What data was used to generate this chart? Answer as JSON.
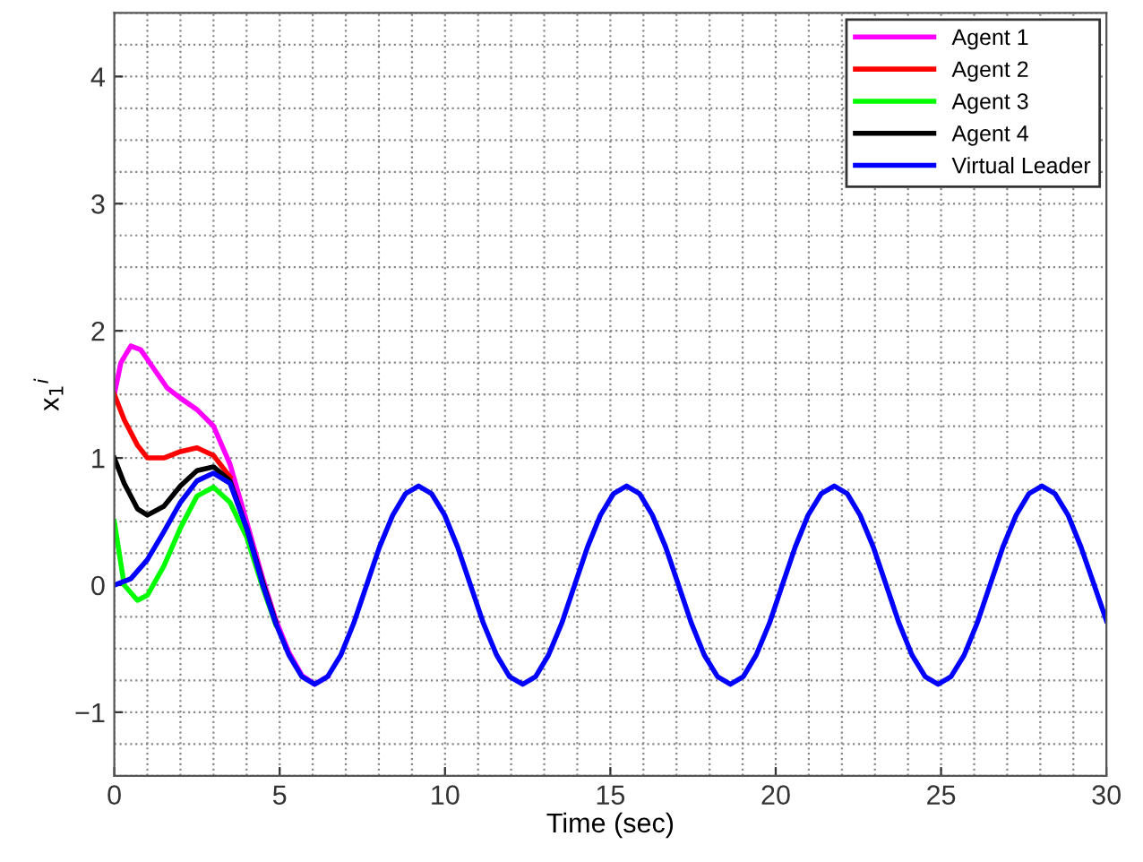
{
  "chart_data": {
    "type": "line",
    "xlabel": "Time (sec)",
    "ylabel": "x$_{1}$$^{i}$",
    "xlim": [
      0,
      30
    ],
    "xticks": [
      0,
      5,
      10,
      15,
      20,
      25,
      30
    ],
    "ylim": [
      -1.5,
      4.5
    ],
    "yticks": [
      -1,
      0,
      1,
      2,
      3,
      4
    ],
    "grid": true,
    "legend": "top right",
    "line_style": "solid",
    "marker": "none",
    "series": [
      {
        "name": "Agent 1",
        "color": "#ff00ff",
        "x": [
          0,
          0.2,
          0.5,
          0.8,
          1.2,
          1.6,
          2,
          2.5,
          3,
          3.5,
          4,
          4.49,
          4.88,
          5.28,
          5.67,
          6.06,
          6.45
        ],
        "values": [
          1.5,
          1.75,
          1.88,
          1.85,
          1.7,
          1.55,
          1.47,
          1.38,
          1.25,
          0.95,
          0.5,
          0.05,
          -0.27,
          -0.53,
          -0.71,
          -0.78,
          -0.72
        ]
      },
      {
        "name": "Agent 2",
        "color": "#ff0000",
        "x": [
          0,
          0.3,
          0.7,
          1,
          1.5,
          2,
          2.5,
          3,
          3.5
        ],
        "values": [
          1.5,
          1.3,
          1.1,
          1.0,
          1.0,
          1.05,
          1.08,
          1.02,
          0.85
        ]
      },
      {
        "name": "Agent 3",
        "color": "#00ff00",
        "x": [
          0,
          0.3,
          0.7,
          1,
          1.5,
          2,
          2.5,
          3,
          3.5,
          4,
          4.49,
          4.88
        ],
        "values": [
          0.5,
          0.0,
          -0.12,
          -0.08,
          0.15,
          0.45,
          0.7,
          0.77,
          0.65,
          0.38,
          -0.02,
          -0.31
        ]
      },
      {
        "name": "Agent 4",
        "color": "#000000",
        "x": [
          0,
          0.3,
          0.7,
          1,
          1.5,
          2,
          2.5,
          3,
          3.5,
          4,
          4.49,
          4.88
        ],
        "values": [
          1.0,
          0.8,
          0.6,
          0.55,
          0.62,
          0.78,
          0.9,
          0.93,
          0.82,
          0.45,
          0.02,
          -0.29
        ]
      },
      {
        "name": "Virtual Leader",
        "color": "#0000ff",
        "x": [
          0,
          0.5,
          1,
          1.5,
          2,
          2.5,
          3,
          3.5,
          4,
          4.49,
          4.88,
          5.28,
          5.67,
          6.06,
          6.45,
          6.85,
          7.24,
          7.63,
          8.02,
          8.42,
          8.81,
          9.2,
          9.59,
          9.99,
          10.38,
          10.77,
          11.16,
          11.56,
          11.95,
          12.35,
          12.74,
          13.13,
          13.53,
          13.92,
          14.31,
          14.7,
          15.1,
          15.49,
          15.88,
          16.27,
          16.67,
          17.06,
          17.45,
          17.84,
          18.24,
          18.63,
          19.02,
          19.41,
          19.81,
          20.2,
          20.59,
          20.98,
          21.38,
          21.77,
          22.16,
          22.55,
          22.95,
          23.34,
          23.73,
          24.12,
          24.52,
          24.91,
          25.3,
          25.7,
          26.09,
          26.48,
          26.87,
          27.27,
          27.66,
          28.05,
          28.44,
          28.84,
          29.23,
          29.63,
          30
        ],
        "values": [
          0,
          0.05,
          0.2,
          0.42,
          0.65,
          0.82,
          0.88,
          0.8,
          0.45,
          0,
          -0.3,
          -0.55,
          -0.72,
          -0.78,
          -0.72,
          -0.55,
          -0.3,
          0,
          0.3,
          0.55,
          0.72,
          0.78,
          0.72,
          0.55,
          0.3,
          0,
          -0.3,
          -0.55,
          -0.72,
          -0.78,
          -0.72,
          -0.55,
          -0.3,
          0,
          0.3,
          0.55,
          0.72,
          0.78,
          0.72,
          0.55,
          0.3,
          0,
          -0.3,
          -0.55,
          -0.72,
          -0.78,
          -0.72,
          -0.55,
          -0.3,
          0,
          0.3,
          0.55,
          0.72,
          0.78,
          0.72,
          0.55,
          0.3,
          0,
          -0.3,
          -0.55,
          -0.72,
          -0.78,
          -0.72,
          -0.55,
          -0.3,
          0,
          0.3,
          0.55,
          0.72,
          0.78,
          0.72,
          0.55,
          0.3,
          0,
          -0.28
        ]
      }
    ]
  }
}
